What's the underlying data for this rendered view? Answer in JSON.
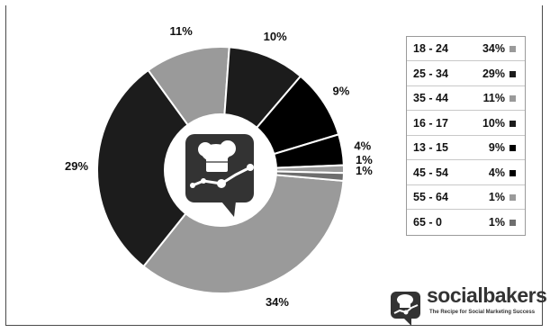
{
  "chart_data": {
    "type": "pie",
    "donut": true,
    "title": "",
    "categories": [
      "18 - 24",
      "25 - 34",
      "35 - 44",
      "16 - 17",
      "13 - 15",
      "45 - 54",
      "55 - 64",
      "65 - 0"
    ],
    "values": [
      34,
      29,
      11,
      10,
      9,
      4,
      1,
      1
    ],
    "data_labels": [
      "34%",
      "29%",
      "11%",
      "10%",
      "9%",
      "4%",
      "1%",
      "1%"
    ],
    "colors": [
      "#9a9a9a",
      "#1c1c1c",
      "#9a9a9a",
      "#1c1c1c",
      "#000000",
      "#000000",
      "#9a9a9a",
      "#6e6e6e"
    ],
    "legend_position": "right"
  },
  "legend": {
    "rows": [
      {
        "label": "18 - 24",
        "value": "34%",
        "color": "#9a9a9a"
      },
      {
        "label": "25 - 34",
        "value": "29%",
        "color": "#1c1c1c"
      },
      {
        "label": "35 - 44",
        "value": "11%",
        "color": "#9a9a9a"
      },
      {
        "label": "16 - 17",
        "value": "10%",
        "color": "#1c1c1c"
      },
      {
        "label": "13 - 15",
        "value": "9%",
        "color": "#000000"
      },
      {
        "label": "45 - 54",
        "value": "4%",
        "color": "#000000"
      },
      {
        "label": "55 - 64",
        "value": "1%",
        "color": "#9a9a9a"
      },
      {
        "label": "65 - 0",
        "value": "1%",
        "color": "#6e6e6e"
      }
    ]
  },
  "brand": {
    "name": "socialbakers",
    "tagline": "The Recipe for Social Marketing Success",
    "center_icon": "chef-hat-chart-icon",
    "logo_icon": "chef-hat-logo-icon"
  }
}
